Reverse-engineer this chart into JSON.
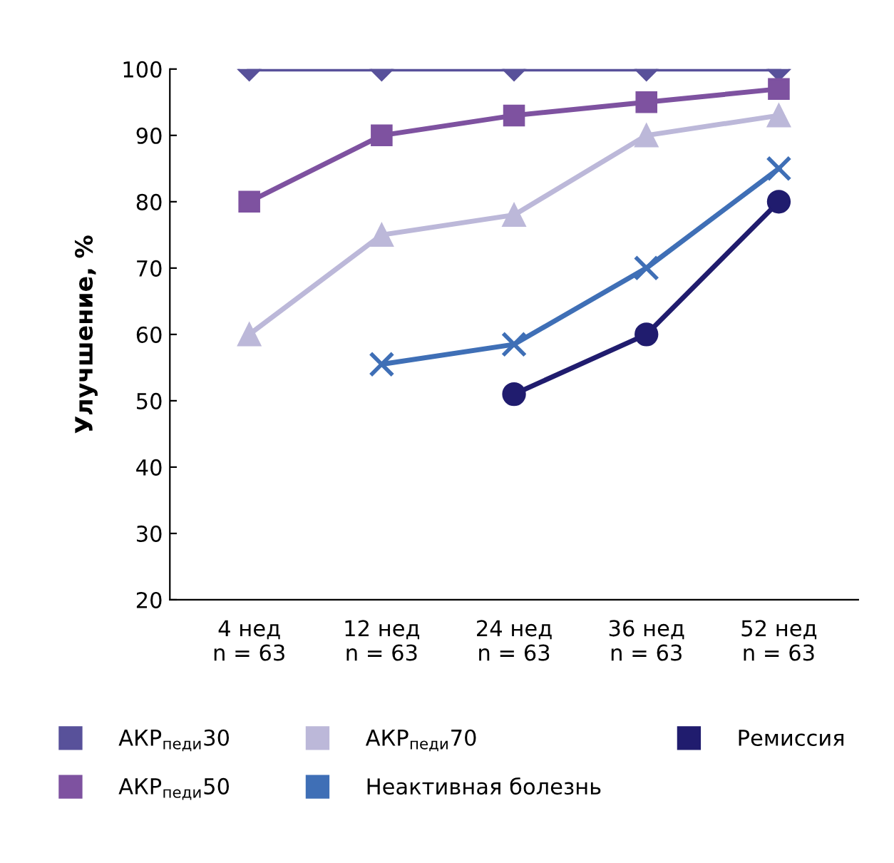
{
  "chart_data": {
    "type": "line",
    "ylabel": "Улучшение, %",
    "categories": [
      "4 нед\nn = 63",
      "12 нед\nn = 63",
      "24 нед\nn = 63",
      "36 нед\nn = 63",
      "52 нед\nn = 63"
    ],
    "series": [
      {
        "name": "АКР$_{педи}$30",
        "color": "#58519a",
        "marker": "diamond",
        "values": [
          100,
          100,
          100,
          100,
          100
        ]
      },
      {
        "name": "АКР$_{педи}$50",
        "color": "#7e52a0",
        "marker": "square",
        "values": [
          80,
          90,
          93,
          95,
          97
        ]
      },
      {
        "name": "АКР$_{педи}$70",
        "color": "#bcb8d9",
        "marker": "triangle",
        "values": [
          60,
          75,
          78,
          90,
          93
        ]
      },
      {
        "name": "Неактивная болезнь",
        "color": "#3f6fb6",
        "marker": "cross",
        "values": [
          null,
          55.5,
          58.5,
          70,
          85
        ]
      },
      {
        "name": "Ремиссия",
        "color": "#201c6e",
        "marker": "circle",
        "values": [
          null,
          null,
          51,
          60,
          80
        ]
      }
    ],
    "ylim": [
      20,
      100
    ],
    "yticks": [
      20,
      30,
      40,
      50,
      60,
      70,
      80,
      90,
      100
    ],
    "grid": false,
    "legend": "bottom",
    "line_style": "solid"
  }
}
